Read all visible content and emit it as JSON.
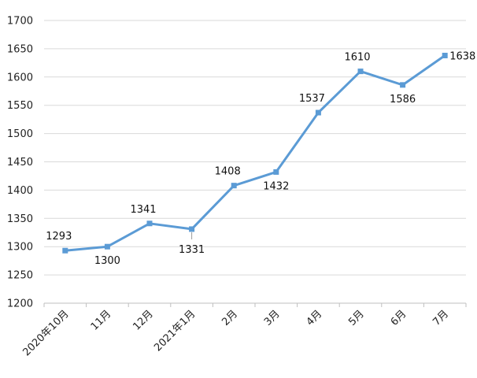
{
  "chart_data": {
    "type": "line",
    "categories": [
      "2020年10月",
      "11月",
      "12月",
      "2021年1月",
      "2月",
      "3月",
      "4月",
      "5月",
      "6月",
      "7月"
    ],
    "series": [
      {
        "values": [
          1293,
          1300,
          1341,
          1331,
          1408,
          1432,
          1537,
          1610,
          1586,
          1638
        ]
      }
    ],
    "ylim": [
      1200,
      1700
    ],
    "yticks": [
      1200,
      1250,
      1300,
      1350,
      1400,
      1450,
      1500,
      1550,
      1600,
      1650,
      1700
    ],
    "grid": true,
    "data_labels": [
      "1293",
      "1300",
      "1341",
      "1331",
      "1408",
      "1432",
      "1537",
      "1610",
      "1586",
      "1638"
    ],
    "colors": {
      "line": "#5b9bd5",
      "grid": "#d9d9d9",
      "axis": "#bfbfbf"
    }
  }
}
